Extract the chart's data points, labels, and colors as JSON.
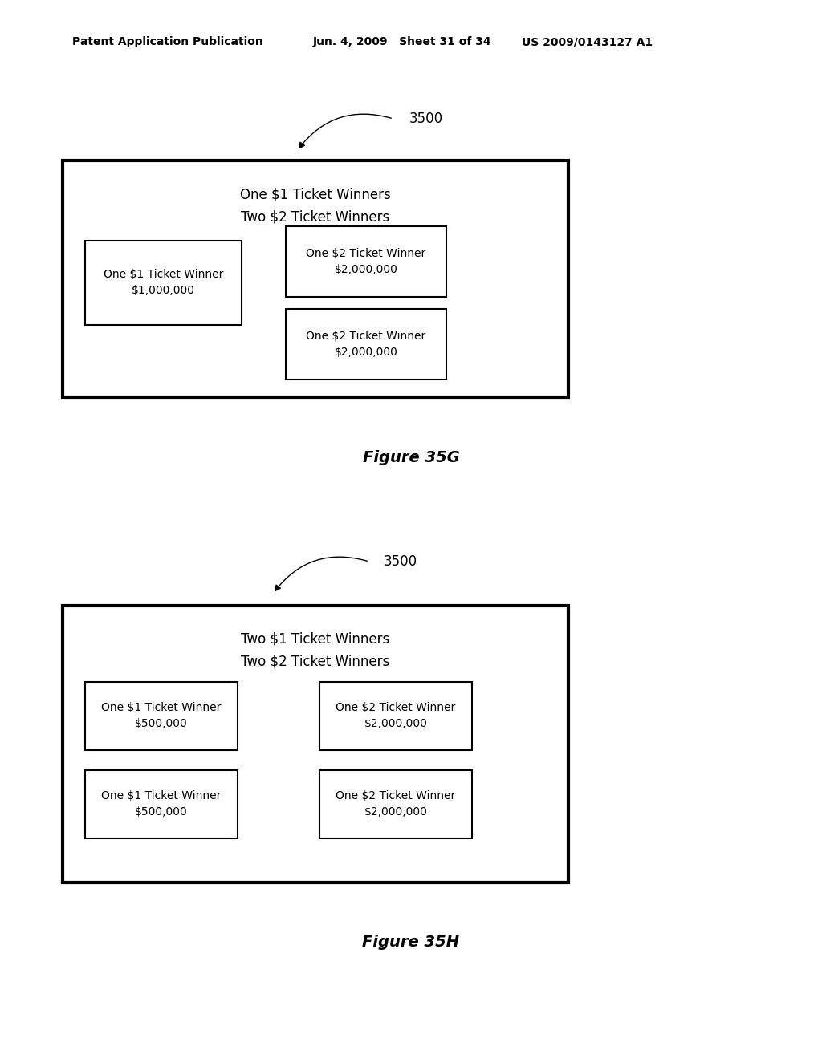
{
  "bg_color": "#ffffff",
  "header_left": "Patent Application Publication",
  "header_mid": "Jun. 4, 2009   Sheet 31 of 34",
  "header_right": "US 2009/0143127 A1",
  "fig1": {
    "label": "3500",
    "title_line1": "One $1 Ticket Winners",
    "title_line2": "Two $2 Ticket Winners",
    "box1": {
      "line1": "One $1 Ticket Winner",
      "line2": "$1,000,000"
    },
    "box2": {
      "line1": "One $2 Ticket Winner",
      "line2": "$2,000,000"
    },
    "box3": {
      "line1": "One $2 Ticket Winner",
      "line2": "$2,000,000"
    },
    "caption": "Figure 35G"
  },
  "fig2": {
    "label": "3500",
    "title_line1": "Two $1 Ticket Winners",
    "title_line2": "Two $2 Ticket Winners",
    "box1": {
      "line1": "One $1 Ticket Winner",
      "line2": "$500,000"
    },
    "box2": {
      "line1": "One $1 Ticket Winner",
      "line2": "$500,000"
    },
    "box3": {
      "line1": "One $2 Ticket Winner",
      "line2": "$2,000,000"
    },
    "box4": {
      "line1": "One $2 Ticket Winner",
      "line2": "$2,000,000"
    },
    "caption": "Figure 35H"
  }
}
